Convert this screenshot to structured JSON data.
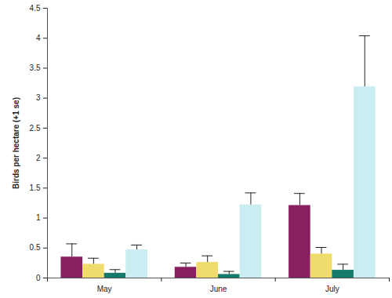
{
  "chart_data": {
    "type": "bar",
    "y_label": "Birds per hectare (+1 se)",
    "categories": [
      "May",
      "June",
      "July"
    ],
    "series": [
      {
        "color": "#8a1f5f",
        "values": [
          0.35,
          0.18,
          1.21
        ],
        "errors": [
          0.22,
          0.07,
          0.2
        ]
      },
      {
        "color": "#f0dc6c",
        "values": [
          0.23,
          0.26,
          0.4
        ],
        "errors": [
          0.1,
          0.11,
          0.11
        ]
      },
      {
        "color": "#137a6c",
        "values": [
          0.08,
          0.06,
          0.13
        ],
        "errors": [
          0.06,
          0.05,
          0.1
        ]
      },
      {
        "color": "#c9edf0",
        "values": [
          0.47,
          1.22,
          3.19
        ],
        "errors": [
          0.08,
          0.2,
          0.85
        ]
      }
    ],
    "ylim": [
      0,
      4.5
    ],
    "yticks": [
      0,
      0.5,
      1,
      1.5,
      2,
      2.5,
      3,
      3.5,
      4,
      4.5
    ],
    "grid": false
  }
}
